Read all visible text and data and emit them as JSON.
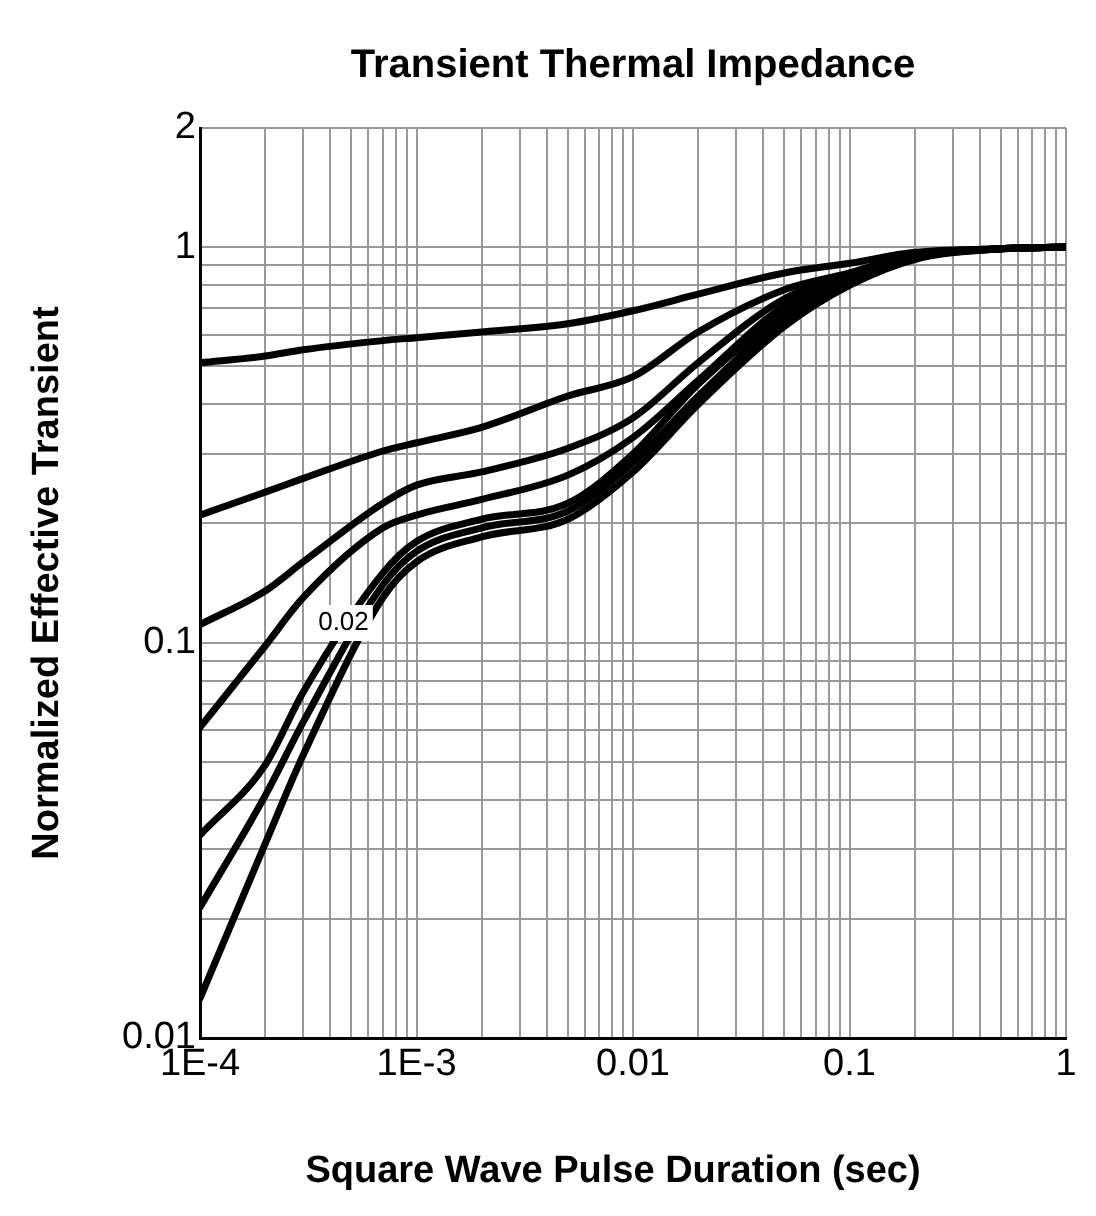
{
  "chart_data": {
    "type": "line",
    "title": "Transient Thermal Impedance",
    "xlabel": "Square Wave Pulse Duration (sec)",
    "ylabel": "Normalized Effective Transient",
    "log": "xy",
    "grid": true,
    "marker": "none",
    "line_style": "solid",
    "x": [
      0.0001,
      0.0002,
      0.0003,
      0.0007,
      0.001,
      0.002,
      0.005,
      0.01,
      0.02,
      0.05,
      0.1,
      0.2,
      0.5,
      1
    ],
    "xlim": [
      0.0001,
      1
    ],
    "ylim": [
      0.01,
      2
    ],
    "xticks": [
      {
        "value": 0.0001,
        "label": "1E-4"
      },
      {
        "value": 0.0002,
        "label": null
      },
      {
        "value": 0.0003,
        "label": null
      },
      {
        "value": 0.0004,
        "label": null
      },
      {
        "value": 0.0005,
        "label": null
      },
      {
        "value": 0.0006,
        "label": null
      },
      {
        "value": 0.0007,
        "label": null
      },
      {
        "value": 0.0008,
        "label": null
      },
      {
        "value": 0.0009,
        "label": null
      },
      {
        "value": 0.001,
        "label": "1E-3"
      },
      {
        "value": 0.002,
        "label": null
      },
      {
        "value": 0.003,
        "label": null
      },
      {
        "value": 0.004,
        "label": null
      },
      {
        "value": 0.005,
        "label": null
      },
      {
        "value": 0.006,
        "label": null
      },
      {
        "value": 0.007,
        "label": null
      },
      {
        "value": 0.008,
        "label": null
      },
      {
        "value": 0.009,
        "label": null
      },
      0.01,
      {
        "value": 0.02,
        "label": null
      },
      {
        "value": 0.03,
        "label": null
      },
      {
        "value": 0.04,
        "label": null
      },
      {
        "value": 0.05,
        "label": null
      },
      {
        "value": 0.06,
        "label": null
      },
      {
        "value": 0.07,
        "label": null
      },
      {
        "value": 0.08,
        "label": null
      },
      {
        "value": 0.09,
        "label": null
      },
      0.1,
      {
        "value": 0.2,
        "label": null
      },
      {
        "value": 0.3,
        "label": null
      },
      {
        "value": 0.4,
        "label": null
      },
      {
        "value": 0.5,
        "label": null
      },
      {
        "value": 0.6,
        "label": null
      },
      {
        "value": 0.7,
        "label": null
      },
      {
        "value": 0.8,
        "label": null
      },
      {
        "value": 0.9,
        "label": null
      },
      1
    ],
    "yticks": [
      0.01,
      {
        "value": 0.02,
        "label": null
      },
      {
        "value": 0.03,
        "label": null
      },
      {
        "value": 0.04,
        "label": null
      },
      {
        "value": 0.05,
        "label": null
      },
      {
        "value": 0.06,
        "label": null
      },
      {
        "value": 0.07,
        "label": null
      },
      {
        "value": 0.08,
        "label": null
      },
      {
        "value": 0.09,
        "label": null
      },
      0.1,
      {
        "value": 0.2,
        "label": null
      },
      {
        "value": 0.3,
        "label": null
      },
      {
        "value": 0.4,
        "label": null
      },
      {
        "value": 0.5,
        "label": null
      },
      {
        "value": 0.6,
        "label": null
      },
      {
        "value": 0.7,
        "label": null
      },
      {
        "value": 0.8,
        "label": null
      },
      {
        "value": 0.9,
        "label": null
      },
      1,
      2
    ],
    "series": [
      {
        "color": "#000000",
        "values": [
          0.51,
          0.53,
          0.55,
          0.58,
          0.59,
          0.61,
          0.64,
          0.69,
          0.76,
          0.86,
          0.91,
          0.97,
          0.99,
          1.0
        ]
      },
      {
        "color": "#000000",
        "values": [
          0.21,
          0.24,
          0.26,
          0.305,
          0.32,
          0.35,
          0.42,
          0.47,
          0.61,
          0.78,
          0.86,
          0.96,
          0.99,
          1.0
        ]
      },
      {
        "color": "#000000",
        "values": [
          0.111,
          0.135,
          0.16,
          0.225,
          0.25,
          0.27,
          0.31,
          0.37,
          0.51,
          0.74,
          0.85,
          0.95,
          0.99,
          1.0
        ]
      },
      {
        "color": "#000000",
        "values": [
          0.061,
          0.098,
          0.13,
          0.195,
          0.21,
          0.23,
          0.265,
          0.33,
          0.46,
          0.71,
          0.84,
          0.95,
          0.99,
          1.0
        ]
      },
      {
        "color": "#000000",
        "values": [
          0.0326,
          0.049,
          0.075,
          0.15,
          0.18,
          0.205,
          0.225,
          0.3,
          0.45,
          0.68,
          0.83,
          0.95,
          0.99,
          1.0
        ]
      },
      {
        "color": "#000000",
        "values": [
          0.0214,
          0.041,
          0.063,
          0.14,
          0.17,
          0.195,
          0.215,
          0.285,
          0.42,
          0.66,
          0.82,
          0.94,
          0.99,
          1.0
        ]
      },
      {
        "color": "#000000",
        "values": [
          0.0126,
          0.031,
          0.052,
          0.13,
          0.16,
          0.185,
          0.205,
          0.27,
          0.4,
          0.63,
          0.8,
          0.93,
          0.99,
          1.0
        ]
      }
    ],
    "annotations": [
      {
        "text": "0.02",
        "x": 0.00046,
        "y": 0.112
      }
    ]
  }
}
